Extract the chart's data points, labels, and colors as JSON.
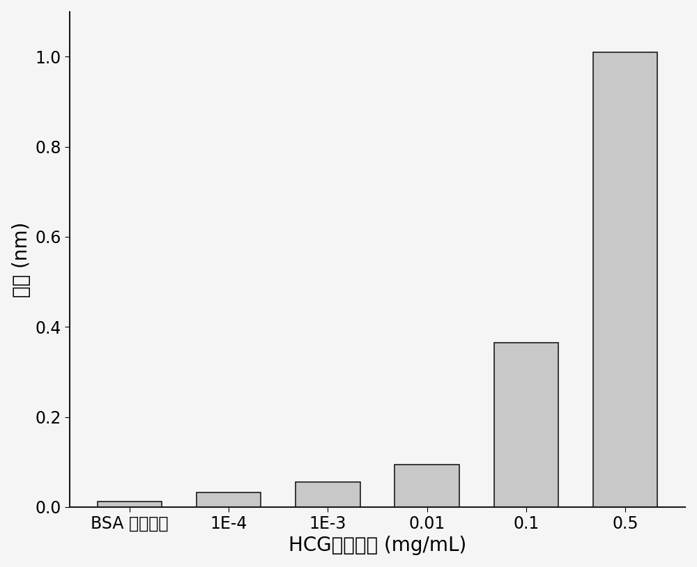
{
  "categories": [
    "BSA （对照）",
    "1E-4",
    "1E-3",
    "0.01",
    "0.1",
    "0.5"
  ],
  "values": [
    0.012,
    0.033,
    0.055,
    0.095,
    0.365,
    1.01
  ],
  "bar_color": "#c8c8c8",
  "bar_edgecolor": "#1a1a1a",
  "xlabel": "HCG抗体浓度 (mg/mL)",
  "ylabel": "响应 (nm)",
  "ylim": [
    0.0,
    1.1
  ],
  "yticks": [
    0.0,
    0.2,
    0.4,
    0.6,
    0.8,
    1.0
  ],
  "background_color": "#f5f5f5",
  "plot_bg_color": "#f5f5f5",
  "bar_width": 0.65,
  "xlabel_fontsize": 20,
  "ylabel_fontsize": 20,
  "tick_fontsize": 17,
  "spine_linewidth": 1.5
}
